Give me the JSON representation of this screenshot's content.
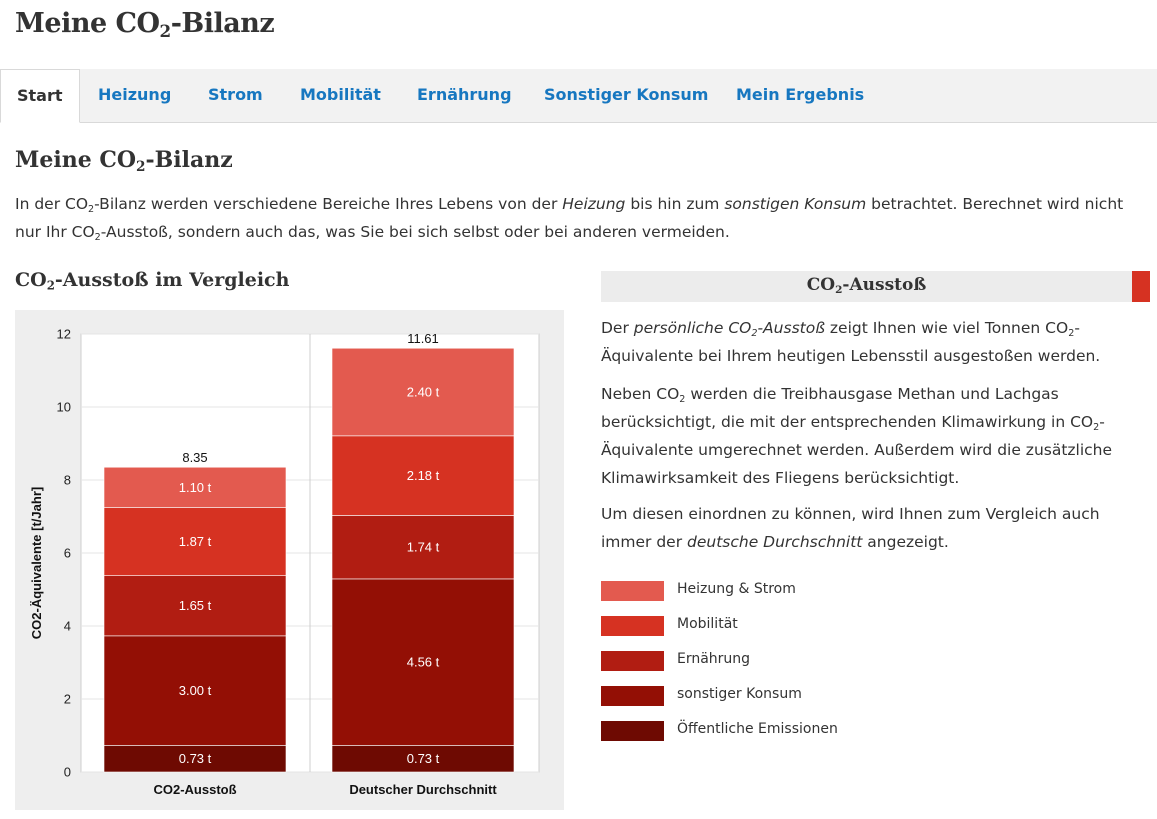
{
  "app": {
    "title_pre": "Meine CO",
    "title_sub": "2",
    "title_post": "-Bilanz"
  },
  "tabs": [
    {
      "label": "Start",
      "active": true
    },
    {
      "label": "Heizung"
    },
    {
      "label": "Strom"
    },
    {
      "label": "Mobilität"
    },
    {
      "label": "Ernährung"
    },
    {
      "label": "Sonstiger Konsum"
    },
    {
      "label": "Mein Ergebnis"
    }
  ],
  "main": {
    "heading_pre": "Meine CO",
    "heading_sub": "2",
    "heading_post": "-Bilanz",
    "intro": {
      "t1": "In der CO",
      "sub1": "2",
      "t2": "-Bilanz werden verschiedene Bereiche Ihres Lebens von der ",
      "em1": "Heizung",
      "t3": " bis hin zum ",
      "em2": "sonstigen Konsum",
      "t4": " betrachtet. Berechnet wird nicht nur Ihr CO",
      "sub2": "2",
      "t5": "-Ausstoß, sondern auch das, was Sie bei sich selbst oder bei anderen vermeiden."
    },
    "chart_heading_pre": "CO",
    "chart_heading_sub": "2",
    "chart_heading_post": "-Ausstoß im Vergleich"
  },
  "info": {
    "header_pre": "CO",
    "header_sub": "2",
    "header_post": "-Ausstoß",
    "p1": {
      "t1": "Der ",
      "em1_pre": "persönliche CO",
      "em1_sub": "2",
      "em1_post": "-Ausstoß",
      "t2": " zeigt Ihnen wie viel Tonnen CO",
      "sub2": "2",
      "t3": "-Äquivalente bei Ihrem heutigen Lebensstil ausgestoßen werden."
    },
    "p2": {
      "t1": "Neben CO",
      "sub1": "2",
      "t2": " werden die Treibhausgase Methan und Lachgas berücksichtigt, die mit der entsprechenden Klimawirkung in CO",
      "sub2": "2",
      "t3": "-Äquivalente umgerechnet werden. Außerdem wird die zusätzliche Klimawirksamkeit des Fliegens berücksichtigt."
    },
    "p3": {
      "t1": "Um diesen einordnen zu können, wird Ihnen zum Vergleich auch immer der ",
      "em1": "deutsche Durchschnitt",
      "t2": " angezeigt."
    }
  },
  "legend": [
    {
      "label": "Heizung & Strom",
      "color": "#e35a4f"
    },
    {
      "label": "Mobilität",
      "color": "#d63222"
    },
    {
      "label": "Ernährung",
      "color": "#b11d12"
    },
    {
      "label": "sonstiger Konsum",
      "color": "#930f05"
    },
    {
      "label": "Öffentliche Emissionen",
      "color": "#6e0a02"
    }
  ],
  "chart_data": {
    "type": "bar",
    "stacked": true,
    "categories": [
      "CO2-Ausstoß",
      "Deutscher Durchschnitt"
    ],
    "ylabel": "CO2-Äquivalente [t/Jahr]",
    "ylim": [
      0,
      12
    ],
    "yticks": [
      0,
      2,
      4,
      6,
      8,
      10,
      12
    ],
    "totals": [
      "8.35",
      "11.61"
    ],
    "series": [
      {
        "name": "Öffentliche Emissionen",
        "color": "#6e0a02",
        "values": [
          0.73,
          0.73
        ],
        "labels": [
          "0.73 t",
          "0.73 t"
        ]
      },
      {
        "name": "sonstiger Konsum",
        "color": "#930f05",
        "values": [
          3.0,
          4.56
        ],
        "labels": [
          "3.00 t",
          "4.56 t"
        ]
      },
      {
        "name": "Ernährung",
        "color": "#b11d12",
        "values": [
          1.65,
          1.74
        ],
        "labels": [
          "1.65 t",
          "1.74 t"
        ]
      },
      {
        "name": "Mobilität",
        "color": "#d63222",
        "values": [
          1.87,
          2.18
        ],
        "labels": [
          "1.87 t",
          "2.18 t"
        ]
      },
      {
        "name": "Heizung & Strom",
        "color": "#e35a4f",
        "values": [
          1.1,
          2.4
        ],
        "labels": [
          "1.10 t",
          "2.40 t"
        ]
      }
    ],
    "grid": true,
    "legend": "right"
  }
}
